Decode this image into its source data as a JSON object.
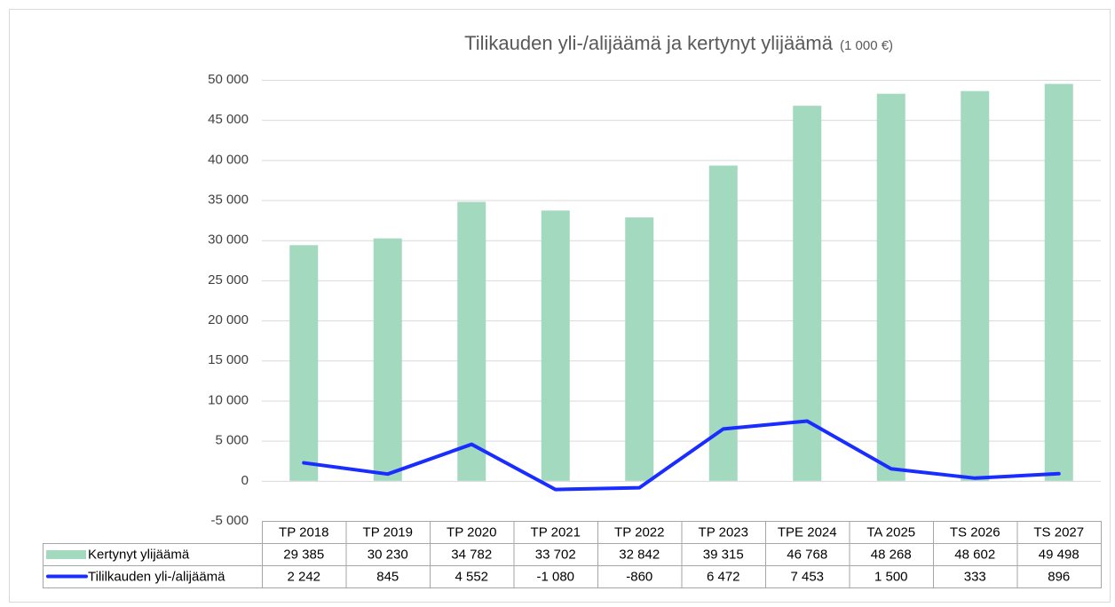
{
  "chart_data": {
    "type": "bar",
    "title": "Tilikauden yli-/alijäämä ja kertynyt ylijäämä",
    "subtitle": "(1 000 €)",
    "categories": [
      "TP 2018",
      "TP 2019",
      "TP 2020",
      "TP 2021",
      "TP 2022",
      "TP 2023",
      "TPE 2024",
      "TA 2025",
      "TS 2026",
      "TS 2027"
    ],
    "series": [
      {
        "name": "Kertynyt ylijäämä",
        "type": "bar",
        "color": "#a3d9bf",
        "values": [
          29385,
          30230,
          34782,
          33702,
          32842,
          39315,
          46768,
          48268,
          48602,
          49498
        ],
        "value_labels": [
          "29 385",
          "30 230",
          "34 782",
          "33 702",
          "32 842",
          "39 315",
          "46 768",
          "48 268",
          "48 602",
          "49 498"
        ]
      },
      {
        "name": "Tililkauden yli-/alijäämä",
        "type": "line",
        "color": "#1a2dff",
        "values": [
          2242,
          845,
          4552,
          -1080,
          -860,
          6472,
          7453,
          1500,
          333,
          896
        ],
        "value_labels": [
          "2 242",
          "845",
          "4 552",
          "-1 080",
          "-860",
          "6 472",
          "7 453",
          "1 500",
          "333",
          "896"
        ]
      }
    ],
    "ylim": [
      -5000,
      50000
    ],
    "yticks": [
      {
        "value": -5000,
        "label": "-5 000"
      },
      0,
      {
        "value": 5000,
        "label": "5 000"
      },
      {
        "value": 10000,
        "label": "10 000"
      },
      {
        "value": 15000,
        "label": "15 000"
      },
      {
        "value": 20000,
        "label": "20 000"
      },
      {
        "value": 25000,
        "label": "25 000"
      },
      {
        "value": 30000,
        "label": "30 000"
      },
      {
        "value": 35000,
        "label": "35 000"
      },
      {
        "value": 40000,
        "label": "40 000"
      },
      {
        "value": 45000,
        "label": "45 000"
      },
      {
        "value": 50000,
        "label": "50 000"
      }
    ],
    "grid": true
  }
}
